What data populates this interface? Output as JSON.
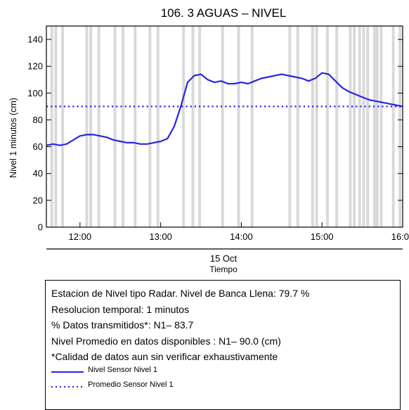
{
  "chart_data": {
    "type": "line",
    "title": "106. 3 AGUAS – NIVEL",
    "xlabel_date": "15 Oct",
    "xlabel": "Tiempo",
    "ylabel": "Nivel 1 minutos (cm)",
    "xlim": [
      "11:35",
      "16:00"
    ],
    "ylim": [
      0,
      150
    ],
    "x_ticks": [
      "12:00",
      "13:00",
      "14:00",
      "15:00",
      "16:00"
    ],
    "y_ticks": [
      0,
      20,
      40,
      60,
      80,
      100,
      120,
      140
    ],
    "grid": false,
    "series": [
      {
        "name": "Nivel Sensor Nivel 1",
        "color": "#2a24e6",
        "style": "solid",
        "points": [
          [
            "11:35",
            61
          ],
          [
            "11:40",
            62
          ],
          [
            "11:45",
            61
          ],
          [
            "11:50",
            62
          ],
          [
            "11:55",
            65
          ],
          [
            "12:00",
            68
          ],
          [
            "12:05",
            69
          ],
          [
            "12:10",
            69
          ],
          [
            "12:15",
            68
          ],
          [
            "12:20",
            67
          ],
          [
            "12:25",
            65
          ],
          [
            "12:30",
            64
          ],
          [
            "12:35",
            63
          ],
          [
            "12:40",
            63
          ],
          [
            "12:45",
            62
          ],
          [
            "12:50",
            62
          ],
          [
            "12:55",
            63
          ],
          [
            "13:00",
            64
          ],
          [
            "13:05",
            66
          ],
          [
            "13:10",
            75
          ],
          [
            "13:15",
            90
          ],
          [
            "13:20",
            108
          ],
          [
            "13:25",
            113
          ],
          [
            "13:30",
            114
          ],
          [
            "13:35",
            110
          ],
          [
            "13:40",
            108
          ],
          [
            "13:45",
            109
          ],
          [
            "13:50",
            107
          ],
          [
            "13:55",
            107
          ],
          [
            "14:00",
            108
          ],
          [
            "14:05",
            107
          ],
          [
            "14:10",
            109
          ],
          [
            "14:15",
            111
          ],
          [
            "14:20",
            112
          ],
          [
            "14:25",
            113
          ],
          [
            "14:30",
            114
          ],
          [
            "14:35",
            113
          ],
          [
            "14:40",
            112
          ],
          [
            "14:45",
            111
          ],
          [
            "14:50",
            109
          ],
          [
            "14:55",
            111
          ],
          [
            "15:00",
            115
          ],
          [
            "15:05",
            114
          ],
          [
            "15:10",
            109
          ],
          [
            "15:15",
            104
          ],
          [
            "15:20",
            101
          ],
          [
            "15:25",
            99
          ],
          [
            "15:30",
            97
          ],
          [
            "15:35",
            95
          ],
          [
            "15:40",
            94
          ],
          [
            "15:45",
            93
          ],
          [
            "15:50",
            92
          ],
          [
            "15:55",
            91
          ],
          [
            "16:00",
            90
          ]
        ]
      },
      {
        "name": "Promedio Sensor Nivel 1",
        "color": "#2a24e6",
        "style": "dotted",
        "points": [
          [
            "11:35",
            90.0
          ],
          [
            "16:00",
            90.0
          ]
        ]
      }
    ],
    "data_gaps": [
      "11:39",
      "11:42",
      "11:47",
      "12:05",
      "12:08",
      "12:14",
      "12:26",
      "12:32",
      "12:41",
      "12:52",
      "12:58",
      "13:17",
      "13:24",
      "13:29",
      "13:46",
      "13:58",
      "14:08",
      "14:36",
      "14:42",
      "14:53",
      "14:56",
      "15:04",
      "15:11",
      "15:21",
      "15:24",
      "15:28",
      "15:31",
      "15:34",
      "15:39",
      "15:41",
      "15:44",
      "15:53",
      "15:58"
    ],
    "gap_color": "#d9d9d9"
  },
  "info": {
    "lines": [
      "Estacion de Nivel tipo Radar. Nivel de Banca Llena: 79.7 %",
      "Resolucion temporal: 1 minutos",
      "% Datos transmitidos*: N1– 83.7",
      "Nivel Promedio en datos disponibles : N1– 90.0 (cm)",
      "*Calidad de datos aun sin verificar exhaustivamente"
    ],
    "legend": [
      {
        "label": "Nivel Sensor Nivel 1",
        "style": "solid",
        "color": "#2a24e6"
      },
      {
        "label": "Promedio Sensor Nivel 1",
        "style": "dotted",
        "color": "#2a24e6"
      }
    ]
  }
}
